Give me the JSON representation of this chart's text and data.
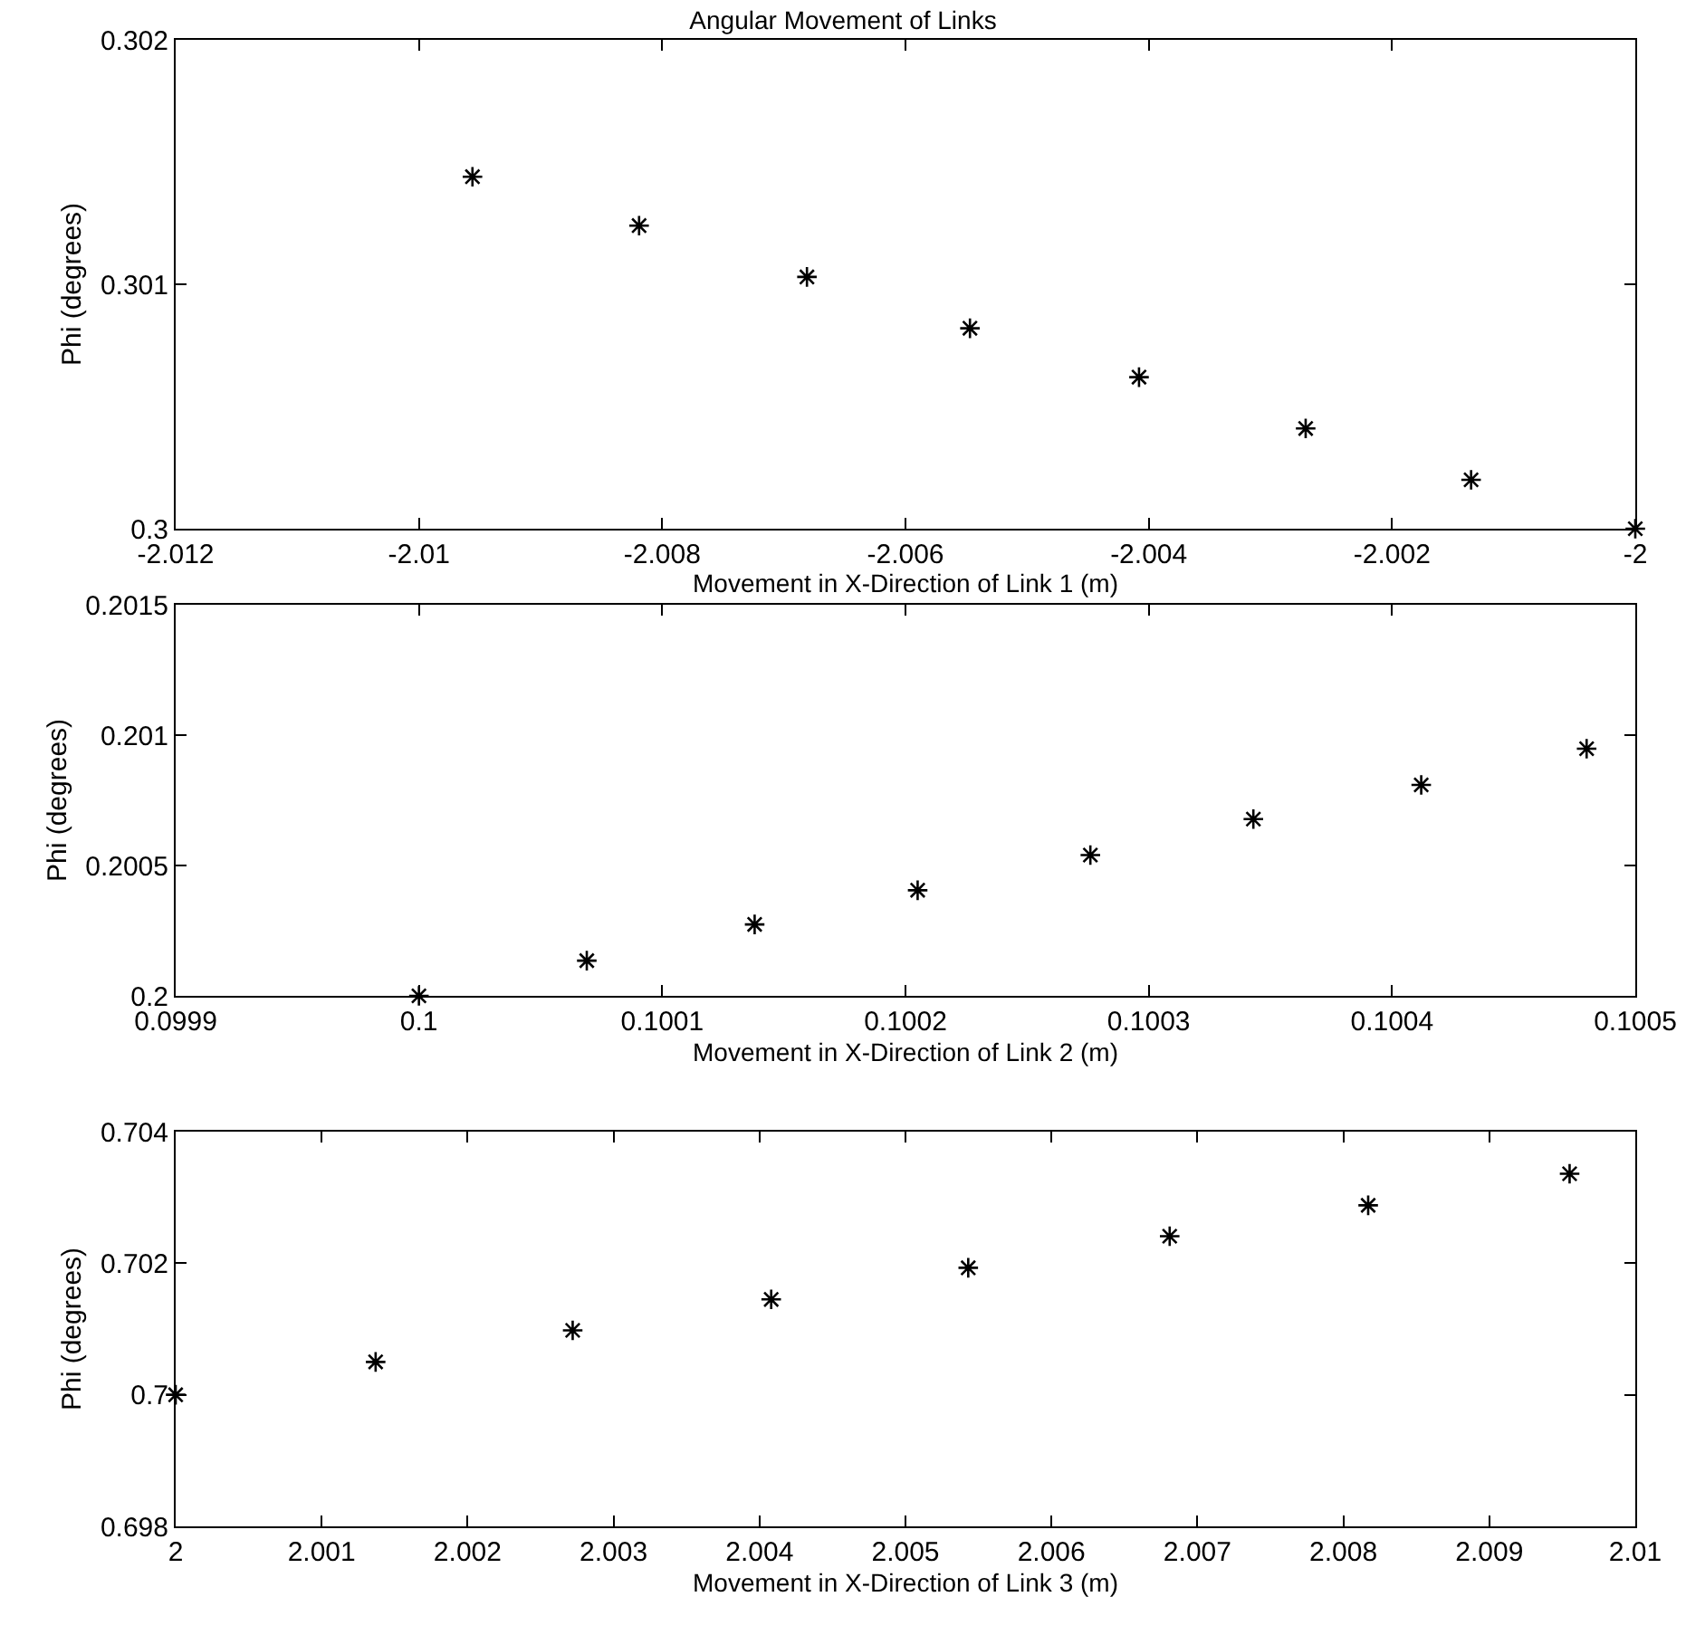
{
  "chart_data": [
    {
      "type": "scatter",
      "title": "Angular Movement of Links",
      "xlabel": "Movement in X-Direction of Link 1 (m)",
      "ylabel": "Phi (degrees)",
      "x": [
        -2.00956,
        -2.00819,
        -2.00681,
        -2.00547,
        -2.00408,
        -2.00271,
        -2.00135,
        -2.0
      ],
      "series": [
        {
          "color": "#000000",
          "values": [
            0.30144,
            0.30124,
            0.30103,
            0.30082,
            0.30062,
            0.30041,
            0.3002,
            0.3
          ]
        }
      ],
      "xlim": [
        -2.012,
        -2.0
      ],
      "xticks": [
        -2.012,
        -2.01,
        -2.008,
        -2.006,
        -2.004,
        -2.002,
        -2
      ],
      "ylim": [
        0.3,
        0.302
      ],
      "yticks": [
        0.3,
        0.301,
        0.302
      ],
      "marker": "cross",
      "grid": false
    },
    {
      "type": "scatter",
      "xlabel": "Movement in X-Direction of Link 2 (m)",
      "ylabel": "Phi (degrees)",
      "x": [
        0.1,
        0.100069,
        0.100138,
        0.100205,
        0.100276,
        0.100343,
        0.100412,
        0.10048
      ],
      "series": [
        {
          "color": "#000000",
          "values": [
            0.2,
            0.200135,
            0.200274,
            0.200405,
            0.20054,
            0.200678,
            0.200809,
            0.200948
          ]
        }
      ],
      "xlim": [
        0.0999,
        0.1005
      ],
      "xticks": [
        0.0999,
        0.1,
        0.1001,
        0.1002,
        0.1003,
        0.1004,
        0.1005
      ],
      "ylim": [
        0.2,
        0.2015
      ],
      "yticks": [
        0.2,
        0.2005,
        0.201,
        0.2015
      ],
      "marker": "cross",
      "grid": false
    },
    {
      "type": "scatter",
      "xlabel": "Movement in X-Direction of Link 3 (m)",
      "ylabel": "Phi (degrees)",
      "x": [
        2.0,
        2.00137,
        2.00272,
        2.00408,
        2.00543,
        2.00681,
        2.00817,
        2.00955
      ],
      "series": [
        {
          "color": "#000000",
          "values": [
            0.7,
            0.7005,
            0.70098,
            0.70145,
            0.70193,
            0.70241,
            0.70288,
            0.70336
          ]
        }
      ],
      "xlim": [
        2.0,
        2.01
      ],
      "xticks": [
        2,
        2.001,
        2.002,
        2.003,
        2.004,
        2.005,
        2.006,
        2.007,
        2.008,
        2.009,
        2.01
      ],
      "ylim": [
        0.698,
        0.704
      ],
      "yticks": [
        0.698,
        0.7,
        0.702,
        0.704
      ],
      "marker": "cross",
      "grid": false
    }
  ]
}
